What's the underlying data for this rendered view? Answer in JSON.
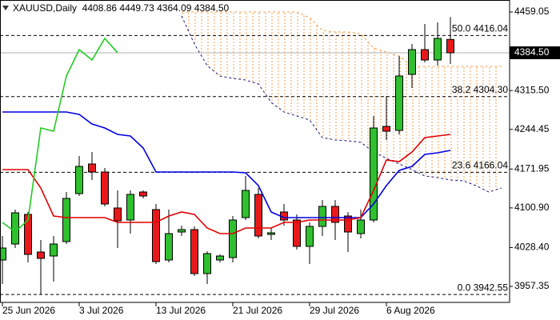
{
  "chart_data": {
    "type": "candlestick",
    "title": "XAUUSD,Daily  4408.86 4449.73 4364.09 4384.50",
    "categories": [
      "25 Jun 2026",
      null,
      null,
      null,
      null,
      null,
      "3 Jul 2026",
      null,
      null,
      null,
      null,
      null,
      "13 Jul 2026",
      null,
      null,
      null,
      null,
      null,
      "21 Jul 2026",
      null,
      null,
      null,
      null,
      null,
      "29 Jul 2026",
      null,
      null,
      null,
      null,
      null,
      "6 Aug 2026",
      null,
      null,
      null,
      null,
      null,
      null,
      null,
      null,
      null
    ],
    "open": [
      4005.61,
      4034.87,
      4088.99,
      4020.24,
      4012.93,
      4039.26,
      4127.02,
      4181.14,
      4166.51,
      4100.69,
      4078.75,
      4129.94,
      4097.76,
      4005.61,
      4056.81,
      4061.2,
      3980.75,
      4005.61,
      4010.0,
      4083.14,
      4125.55,
      4052.42,
      4093.37,
      4078.75,
      4030.48,
      4067.05,
      4103.61,
      4086.06,
      4053.88,
      4078.75,
      4249.88,
      4242.57,
      4344.96,
      4390.3,
      4371.29,
      4408.86,
      null,
      null,
      null,
      null
    ],
    "high": [
      4049.49,
      4097.76,
      4093.37,
      4042.18,
      4049.49,
      4129.94,
      4195.76,
      4203.08,
      4173.82,
      4132.87,
      4132.87,
      4132.87,
      4108.0,
      4097.76,
      4068.51,
      4067.05,
      4021.7,
      4015.85,
      4086.06,
      4159.2,
      4137.26,
      4064.12,
      4108.0,
      4088.99,
      4074.36,
      4115.32,
      4115.32,
      4093.37,
      4097.76,
      4268.9,
      4305.47,
      4378.6,
      4400.54,
      4437.11,
      4440.03,
      4449.73,
      null,
      null,
      null,
      null
    ],
    "low": [
      3961.73,
      4027.55,
      4001.22,
      3942.55,
      3966.12,
      4034.87,
      4122.63,
      4151.88,
      4103.61,
      4027.55,
      4053.88,
      4118.24,
      3998.29,
      4001.22,
      4049.49,
      3976.36,
      3961.73,
      4001.22,
      4001.22,
      4078.75,
      4045.11,
      4042.18,
      4068.51,
      4024.63,
      3998.29,
      4049.49,
      4042.18,
      4020.24,
      4045.11,
      4074.36,
      4225.02,
      4235.26,
      4320.09,
      4366.9,
      4361.05,
      4364.09,
      null,
      null,
      null,
      null
    ],
    "close": [
      4027.55,
      4091.91,
      4015.85,
      4008.54,
      4034.87,
      4118.24,
      4176.75,
      4166.51,
      4108.0,
      4077.29,
      4125.55,
      4122.63,
      4002.69,
      4053.88,
      4061.2,
      3980.75,
      4017.31,
      4012.93,
      4078.75,
      4132.87,
      4049.49,
      4055.34,
      4078.75,
      4030.48,
      4067.05,
      4103.61,
      4074.36,
      4056.81,
      4078.75,
      4246.96,
      4241.11,
      4342.03,
      4390.3,
      4371.29,
      4410.78,
      4384.5,
      null,
      null,
      null,
      null
    ],
    "up_color": "#2fbf2f",
    "down_color": "#e8191b",
    "lines": [
      {
        "color": "#0000e0",
        "values": [
          4276.21,
          4276.21,
          4276.21,
          4276.21,
          4276.21,
          4276.21,
          4271.82,
          4254.27,
          4246.96,
          4235.26,
          4232.33,
          4210.39,
          4166.51,
          4166.51,
          4166.51,
          4166.51,
          4166.51,
          4166.51,
          4166.51,
          4165.05,
          4141.65,
          4093.37,
          4083.14,
          4083.14,
          4083.14,
          4083.14,
          4083.14,
          4083.14,
          4083.14,
          4108.0,
          4141.65,
          4169.43,
          4176.75,
          4198.69,
          4201.62,
          4206.01,
          null,
          null,
          null,
          null
        ]
      },
      {
        "color": "#e00000",
        "values": [
          4170.9,
          4170.9,
          4170.9,
          4137.26,
          4086.06,
          4083.14,
          4083.14,
          4083.14,
          4083.14,
          4074.36,
          4074.36,
          4074.36,
          4074.36,
          4086.06,
          4093.37,
          4088.99,
          4064.12,
          4053.88,
          4053.88,
          4064.12,
          4064.12,
          4064.12,
          4074.36,
          4074.36,
          4078.75,
          4078.75,
          4078.75,
          4078.75,
          4083.14,
          4132.87,
          4188.45,
          4185.52,
          4203.08,
          4229.41,
          4232.33,
          4235.26,
          null,
          null,
          null,
          null
        ]
      },
      {
        "color": "#22cc22",
        "values": [
          4074.36,
          4056.81,
          4078.75,
          4246.96,
          4241.11,
          4342.03,
          4390.3,
          4371.29,
          4410.78,
          4384.5,
          null,
          null,
          null,
          null,
          null,
          null,
          null,
          null,
          null,
          null,
          null,
          null,
          null,
          null,
          null,
          null,
          null,
          null,
          null,
          null,
          null,
          null,
          null,
          null,
          null,
          null,
          null,
          null,
          null,
          null
        ]
      }
    ],
    "cloud": {
      "upper_color": "#f0a050",
      "lower_color": "#1a1a80",
      "upper": [
        null,
        null,
        null,
        null,
        null,
        null,
        null,
        null,
        null,
        null,
        null,
        null,
        null,
        null,
        4459.05,
        4459.05,
        4459.05,
        4459.05,
        4459.05,
        4459.05,
        4459.05,
        4459.05,
        4459.05,
        4459.05,
        4448.81,
        4425.41,
        4422.48,
        4422.48,
        4419.56,
        4393.23,
        4385.92,
        4378.6,
        4359.59,
        4359.59,
        4359.59,
        4359.59,
        4359.59,
        4359.59,
        4359.59,
        4359.59
      ],
      "lower": [
        null,
        null,
        null,
        null,
        null,
        null,
        null,
        null,
        null,
        null,
        null,
        null,
        null,
        null,
        4451.74,
        4400.54,
        4361.05,
        4342.03,
        4337.66,
        4334.72,
        4327.41,
        4293.76,
        4276.21,
        4268.9,
        4261.59,
        4229.41,
        4225.02,
        4223.56,
        4220.63,
        4203.08,
        4191.38,
        4181.14,
        4170.9,
        4159.2,
        4156.27,
        4151.88,
        4150.42,
        4141.65,
        4129.94,
        4137.26
      ]
    },
    "fib_levels": [
      {
        "value": 4416.04,
        "label": "50.0 4416.04"
      },
      {
        "value": 4304.3,
        "label": "38.2 4304.30"
      },
      {
        "value": 4166.04,
        "label": "23.6 4166.04"
      },
      {
        "value": 3942.55,
        "label": "0.0 3942.55"
      }
    ],
    "last_price": {
      "value": 4384.5,
      "label": "4384.50"
    },
    "ylim": [
      3928.09,
      4480.99
    ],
    "yticks": [
      4459.05,
      {
        "value": 4315.5,
        "label": "4315.50"
      },
      4244.45,
      4171.95,
      {
        "value": 4100.9,
        "label": "4100.90"
      },
      {
        "value": 4028.4,
        "label": "4028.40"
      },
      3957.35
    ]
  }
}
